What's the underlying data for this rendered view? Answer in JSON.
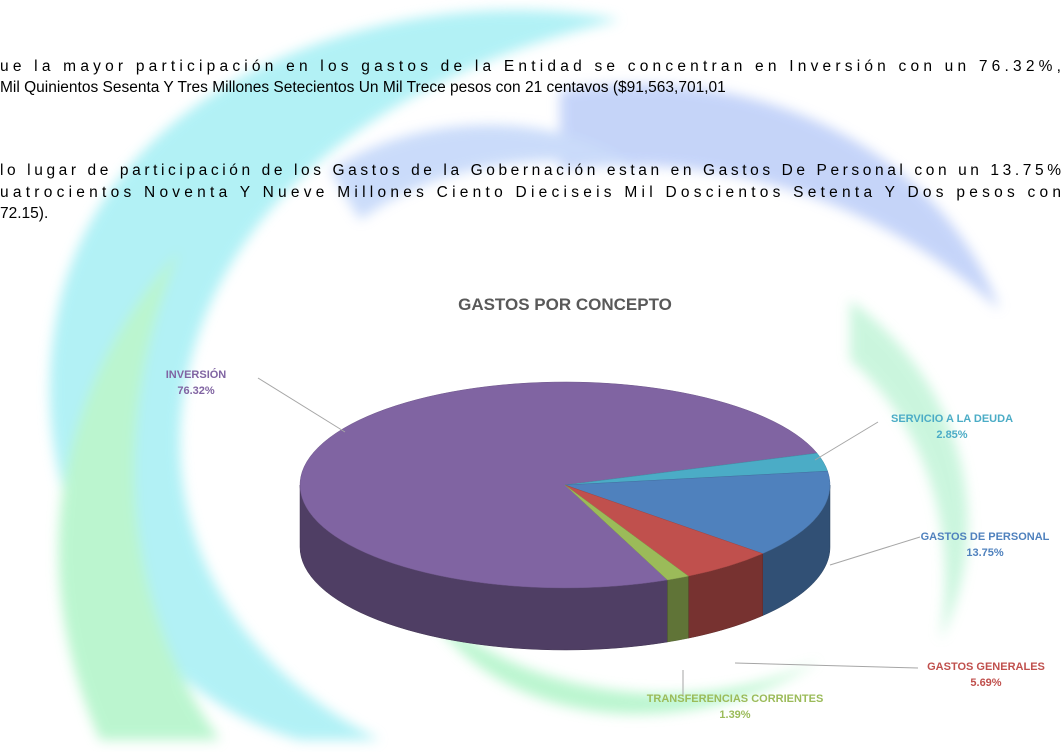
{
  "paragraphs": [
    "ue la mayor participación en los gastos de la Entidad se concentran en Inversión con un 76.32%,",
    "Mil Quinientos Sesenta Y Tres Millones Setecientos Un Mil Trece pesos con 21 centavos ($91,563,701,01",
    "lo lugar de participación de los Gastos de la Gobernación estan en Gastos De Personal con un 13.75%",
    "uatrocientos Noventa Y Nueve Millones Ciento Dieciseis Mil Doscientos Setenta Y Dos pesos con",
    "72.15)."
  ],
  "chart_data": {
    "type": "pie3d",
    "title": "GASTOS POR CONCEPTO",
    "categories": [
      "INVERSIÓN",
      "SERVICIO A LA DEUDA",
      "GASTOS DE PERSONAL",
      "GASTOS GENERALES",
      "TRANSFERENCIAS CORRIENTES"
    ],
    "values": [
      76.32,
      2.85,
      13.75,
      5.69,
      1.39
    ],
    "value_labels": [
      "76.32%",
      "2.85%",
      "13.75%",
      "5.69%",
      "1.39%"
    ],
    "colors": [
      "#8064a2",
      "#4bacc6",
      "#4f81bd",
      "#c0504d",
      "#9bbb59"
    ]
  }
}
